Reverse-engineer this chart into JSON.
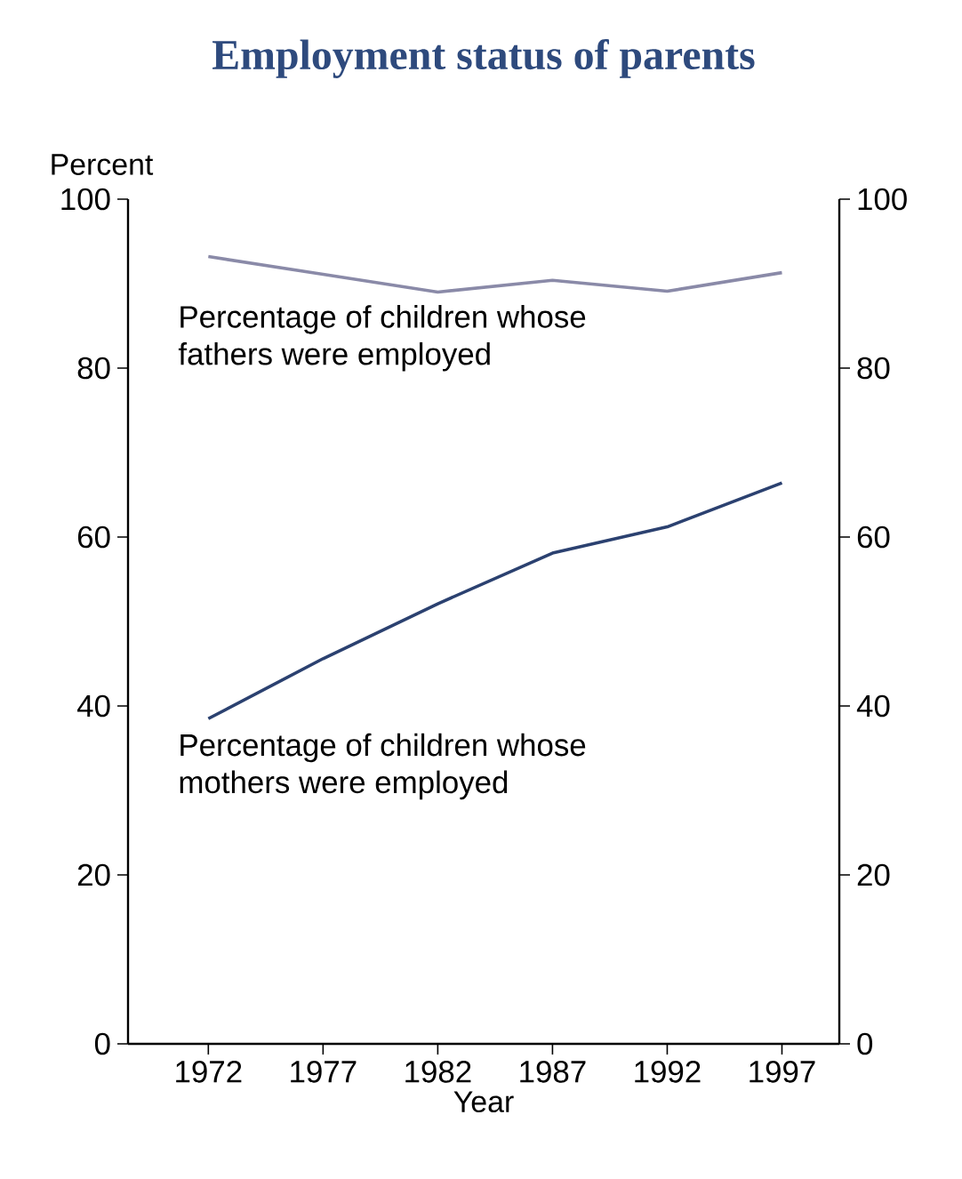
{
  "chart_data": {
    "type": "line",
    "title": "Employment status of parents",
    "xlabel": "Year",
    "ylabel": "Percent",
    "x": [
      1972,
      1977,
      1982,
      1987,
      1992,
      1997
    ],
    "series": [
      {
        "name": "Percentage of children whose fathers were employed",
        "color": "#8a8aa8",
        "values": [
          93.2,
          91.1,
          89.0,
          90.4,
          89.1,
          91.3
        ]
      },
      {
        "name": "Percentage of children whose mothers were employed",
        "color": "#2b4170",
        "values": [
          38.5,
          45.6,
          52.1,
          58.1,
          61.2,
          66.4
        ]
      }
    ],
    "xlim": [
      1968.5,
      1999.5
    ],
    "xticks": [
      1972,
      1977,
      1982,
      1987,
      1992,
      1997
    ],
    "ylim": [
      0,
      100
    ],
    "yticks": [
      0,
      20,
      40,
      60,
      80,
      100
    ],
    "y2lim": [
      0,
      100
    ],
    "y2ticks": [
      0,
      20,
      40,
      60,
      80,
      100
    ],
    "legend": false
  }
}
